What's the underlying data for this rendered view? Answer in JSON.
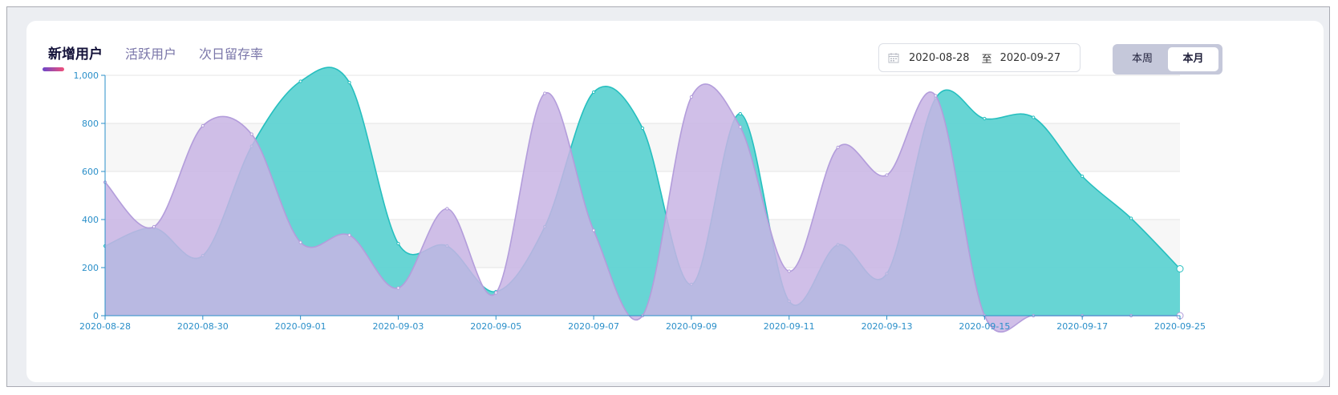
{
  "tabs": {
    "items": [
      "新增用户",
      "活跃用户",
      "次日留存率"
    ],
    "active_index": 0
  },
  "date_range": {
    "start": "2020-08-28",
    "separator": "至",
    "end": "2020-09-27",
    "icon": "calendar-icon"
  },
  "period": {
    "week_label": "本周",
    "month_label": "本月",
    "selected": "本月"
  },
  "colors": {
    "series_purple_fill": "#c8b4e4",
    "series_purple_line": "#b39ddb",
    "series_teal_fill": "#5fd3d2",
    "series_teal_line": "#26bfbf",
    "axis": "#2a8fc9",
    "accent_gradient_start": "#6c46c9",
    "accent_gradient_end": "#f0507a"
  },
  "chart_data": {
    "type": "area",
    "smooth": true,
    "x": [
      "2020-08-28",
      "2020-08-29",
      "2020-08-30",
      "2020-08-31",
      "2020-09-01",
      "2020-09-02",
      "2020-09-03",
      "2020-09-04",
      "2020-09-05",
      "2020-09-06",
      "2020-09-07",
      "2020-09-08",
      "2020-09-09",
      "2020-09-10",
      "2020-09-11",
      "2020-09-12",
      "2020-09-13",
      "2020-09-14",
      "2020-09-15",
      "2020-09-16",
      "2020-09-17",
      "2020-09-18",
      "2020-09-25"
    ],
    "x_tick_labels": [
      "2020-08-28",
      "2020-08-30",
      "2020-09-01",
      "2020-09-03",
      "2020-09-05",
      "2020-09-07",
      "2020-09-09",
      "2020-09-11",
      "2020-09-13",
      "2020-09-15",
      "2020-09-17",
      "2020-09-25"
    ],
    "series": [
      {
        "values": [
          555,
          370,
          790,
          755,
          305,
          335,
          115,
          445,
          95,
          925,
          355,
          0,
          910,
          785,
          185,
          700,
          585,
          915,
          0,
          0,
          0,
          0,
          0
        ]
      },
      {
        "values": [
          290,
          365,
          250,
          705,
          975,
          970,
          300,
          290,
          100,
          370,
          930,
          780,
          130,
          840,
          60,
          295,
          175,
          905,
          820,
          825,
          580,
          405,
          195
        ]
      }
    ],
    "ylim": [
      0,
      1000
    ],
    "y_ticks": [
      0,
      200,
      400,
      600,
      800,
      1000
    ],
    "y_tick_labels": [
      "0",
      "200",
      "400",
      "600",
      "800",
      "1,000"
    ],
    "grid": "horizontal-banded",
    "legend": "none"
  }
}
